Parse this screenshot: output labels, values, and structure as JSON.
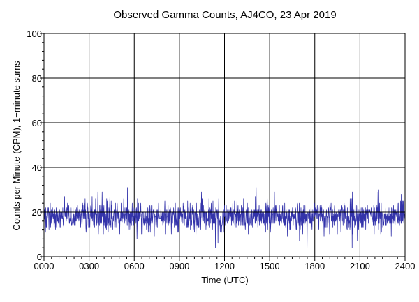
{
  "chart_data": {
    "type": "line",
    "title": "Observed Gamma Counts, AJ4CO, 23 Apr 2019",
    "xlabel": "Time (UTC)",
    "ylabel": "Counts per Minute (CPM), 1−minute sums",
    "xlim": [
      0,
      1440
    ],
    "ylim": [
      0,
      100
    ],
    "x_ticks": [
      {
        "minute": 0,
        "label": "0000"
      },
      {
        "minute": 180,
        "label": "0300"
      },
      {
        "minute": 360,
        "label": "0600"
      },
      {
        "minute": 540,
        "label": "0900"
      },
      {
        "minute": 720,
        "label": "1200"
      },
      {
        "minute": 900,
        "label": "1500"
      },
      {
        "minute": 1080,
        "label": "1800"
      },
      {
        "minute": 1260,
        "label": "2100"
      },
      {
        "minute": 1440,
        "label": "2400"
      }
    ],
    "y_ticks": [
      0,
      20,
      40,
      60,
      80,
      100
    ],
    "grid": true,
    "reference_line_y": 20,
    "series": [
      {
        "name": "",
        "color": "#3333aa",
        "x_unit": "minutes after 0000 UTC",
        "mean_cpm": 18,
        "min_cpm": 4,
        "max_cpm": 31,
        "seed": 23041,
        "points": 1440
      }
    ]
  }
}
